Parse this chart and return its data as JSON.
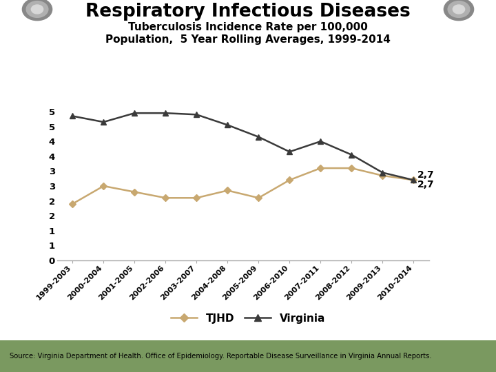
{
  "title_main": "Respiratory Infectious Diseases",
  "title_sub": "Tuberculosis Incidence Rate per 100,000\nPopulation,  5 Year Rolling Averages, 1999-2014",
  "categories": [
    "1999-2003",
    "2000-2004",
    "2001-2005",
    "2002-2006",
    "2003-2007",
    "2004-2008",
    "2005-2009",
    "2006-2010",
    "2007-2011",
    "2008-2012",
    "2009-2013",
    "2010-2014"
  ],
  "tjhd": [
    1.9,
    2.5,
    2.3,
    2.1,
    2.1,
    2.35,
    2.1,
    2.7,
    3.1,
    3.1,
    2.85,
    2.7
  ],
  "virginia": [
    4.85,
    4.65,
    4.95,
    4.95,
    4.9,
    4.55,
    4.15,
    3.65,
    4.0,
    3.55,
    2.95,
    2.7
  ],
  "tjhd_color": "#C8A870",
  "virginia_color": "#3a3a3a",
  "outer_bg": "#7a9960",
  "white_bg": "#ffffff",
  "source_text": "Source: Virginia Department of Health. Office of Epidemiology. Reportable Disease Surveillance in Virginia Annual Reports.",
  "yticks": [
    0,
    0.5,
    1.0,
    1.5,
    2.0,
    2.5,
    3.0,
    3.5,
    4.0,
    4.5,
    5.0
  ],
  "ytick_labels": [
    "0",
    "1",
    "1",
    "2",
    "2",
    "3",
    "3",
    "4",
    "4",
    "5",
    "5"
  ],
  "ylim": [
    0,
    5.5
  ],
  "annotation_virginia": "2,7",
  "annotation_tjhd": "2,7"
}
